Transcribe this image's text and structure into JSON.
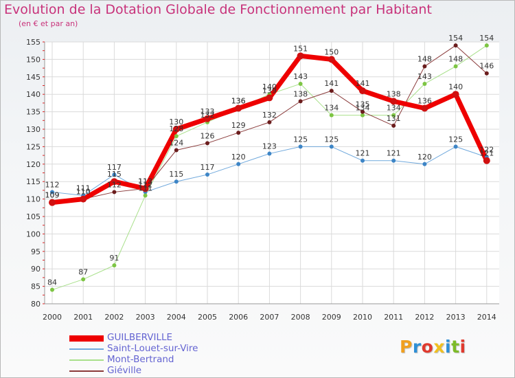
{
  "title": "Evolution de la Dotation Globale de Fonctionnement par Habitant",
  "subtitle": "(en € et par an)",
  "logo": {
    "text": "Proxiti",
    "letters": [
      {
        "ch": "P",
        "color": "#f0a020"
      },
      {
        "ch": "r",
        "color": "#2e8fd6"
      },
      {
        "ch": "o",
        "color": "#e03a2e"
      },
      {
        "ch": "x",
        "color": "#f0c020"
      },
      {
        "ch": "i",
        "color": "#2e8fd6"
      },
      {
        "ch": "t",
        "color": "#7dbb28"
      },
      {
        "ch": "i",
        "color": "#e03a2e"
      }
    ]
  },
  "chart_data": {
    "type": "line",
    "title": "Evolution de la Dotation Globale de Fonctionnement par Habitant",
    "subtitle": "(en € et par an)",
    "x": [
      2000,
      2001,
      2002,
      2003,
      2004,
      2005,
      2006,
      2007,
      2008,
      2009,
      2010,
      2011,
      2012,
      2013,
      2014
    ],
    "ylim": [
      80,
      155
    ],
    "yticks": [
      80,
      85,
      90,
      95,
      100,
      105,
      110,
      115,
      120,
      125,
      130,
      135,
      140,
      145,
      150,
      155
    ],
    "grid": true,
    "legend": "bottom-left",
    "series": [
      {
        "name": "GUILBERVILLE",
        "color": "#ee0000",
        "marker": "#d01010",
        "width": 7,
        "values": [
          109,
          110,
          115,
          113,
          130,
          133,
          136,
          139,
          151,
          150,
          141,
          138,
          136,
          140,
          121
        ]
      },
      {
        "name": "Saint-Louet-sur-Vire",
        "color": "#6fa8dc",
        "marker": "#3d85c6",
        "width": 1,
        "values": [
          112,
          111,
          117,
          112,
          115,
          117,
          120,
          123,
          125,
          125,
          121,
          121,
          120,
          125,
          122
        ]
      },
      {
        "name": "Mont-Bertrand",
        "color": "#a8e08a",
        "marker": "#7dc543",
        "width": 1,
        "values": [
          84,
          87,
          91,
          111,
          128,
          132,
          136,
          140,
          143,
          134,
          134,
          134,
          143,
          148,
          154
        ]
      },
      {
        "name": "Giéville",
        "color": "#8a3a3a",
        "marker": "#6b1d1d",
        "width": 1,
        "values": [
          109,
          110,
          112,
          113,
          124,
          126,
          129,
          132,
          138,
          141,
          135,
          131,
          148,
          154,
          146
        ]
      }
    ]
  }
}
